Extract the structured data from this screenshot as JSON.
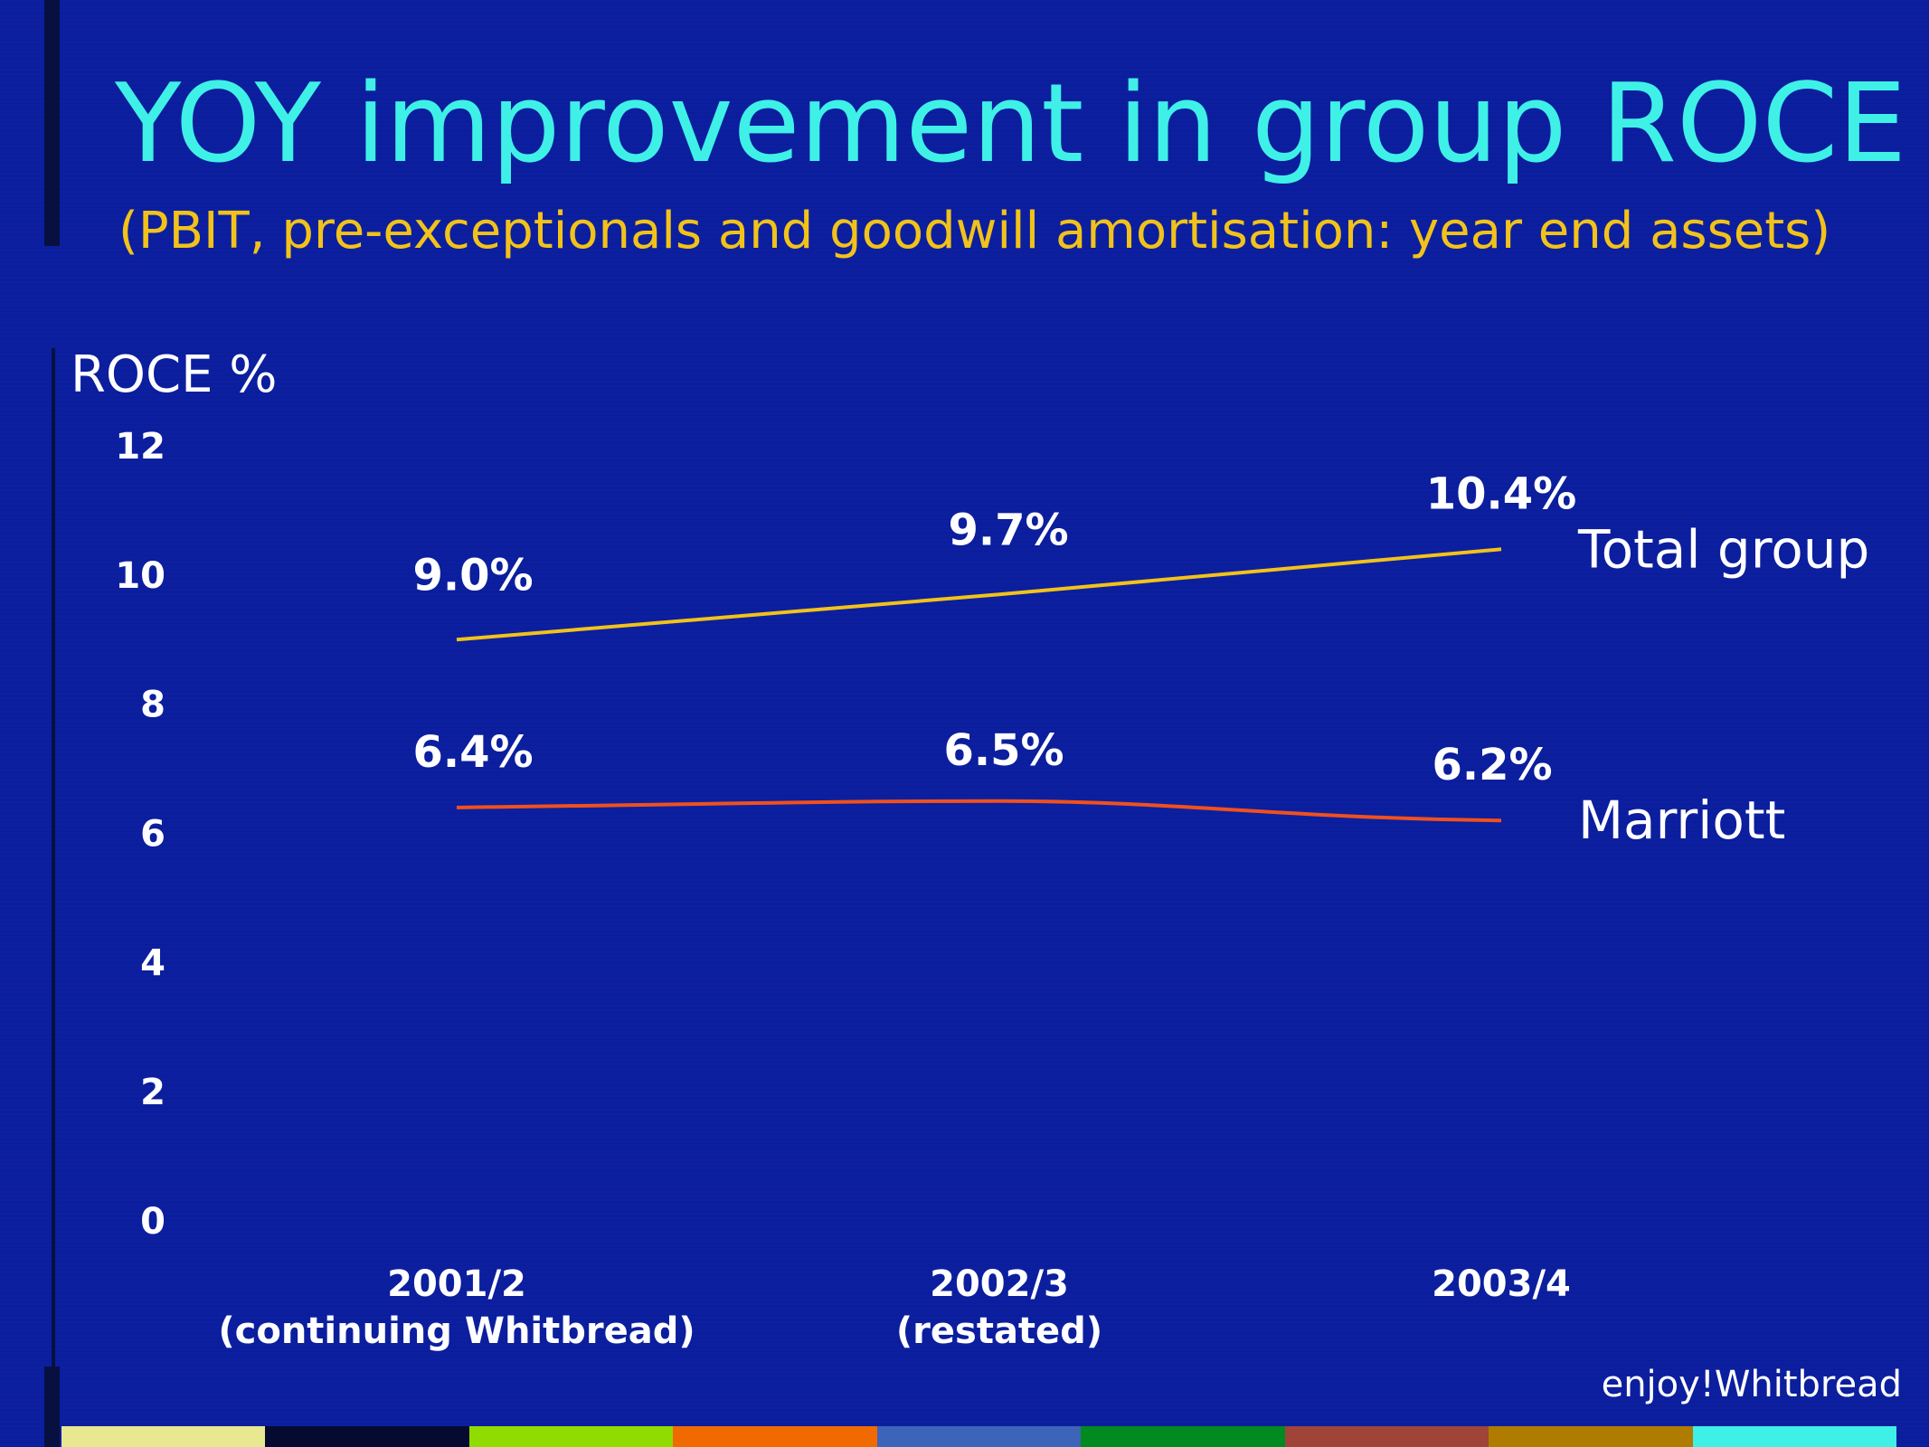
{
  "slide": {
    "title": "YOY improvement in group ROCE",
    "subtitle": "(PBIT, pre-exceptionals and goodwill amortisation: year end assets)",
    "footer": "enjoy!Whitbread",
    "strip_colors": [
      "#e8e890",
      "#050a30",
      "#90dc00",
      "#f06a00",
      "#3c64b8",
      "#008a20",
      "#a04438",
      "#b07c00",
      "#3ff0e6"
    ]
  },
  "chart_data": {
    "type": "line",
    "title": "YOY improvement in group ROCE",
    "subtitle": "(PBIT, pre-exceptionals and goodwill amortisation: year end assets)",
    "ylabel": "ROCE %",
    "xlabel": "",
    "categories": [
      [
        "2001/2",
        "(continuing Whitbread)"
      ],
      [
        "2002/3",
        "(restated)"
      ],
      [
        "2003/4"
      ]
    ],
    "ylim": [
      0,
      12
    ],
    "yticks": [
      0,
      2,
      4,
      6,
      8,
      10,
      12
    ],
    "grid": false,
    "legend": "series names at right end of lines",
    "series": [
      {
        "name": "Total group",
        "values": [
          9.0,
          9.7,
          10.4
        ],
        "labels": [
          "9.0%",
          "9.7%",
          "10.4%"
        ],
        "color": "#f2c21a"
      },
      {
        "name": "Marriott",
        "values": [
          6.4,
          6.5,
          6.2
        ],
        "labels": [
          "6.4%",
          "6.5%",
          "6.2%"
        ],
        "color": "#f0501e"
      }
    ]
  }
}
